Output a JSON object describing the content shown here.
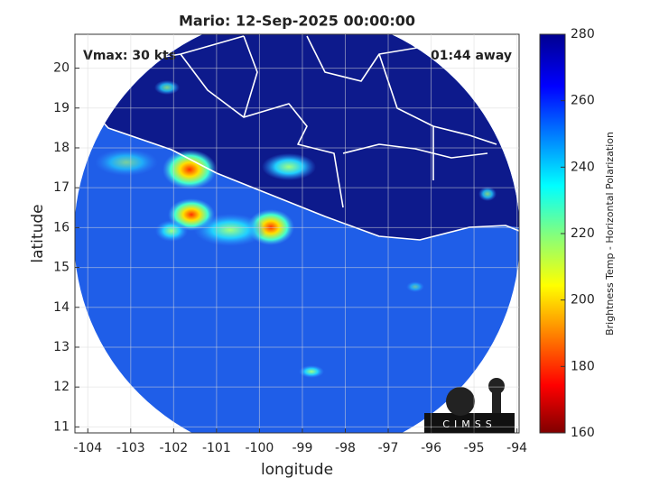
{
  "chart_data": {
    "type": "map",
    "title": "Mario: 12-Sep-2025 00:00:00",
    "annotations": [
      "Vmax: 30 kts",
      "01:44 away"
    ],
    "x_label": "longitude",
    "y_label": "latitude",
    "xlim": [
      -104.3,
      -93.95
    ],
    "xticks": [
      -104,
      -103,
      -102,
      -101,
      -100,
      -99,
      -98,
      -97,
      -96,
      -95,
      -94
    ],
    "ylim": [
      10.85,
      20.85
    ],
    "yticks": [
      11,
      12,
      13,
      14,
      15,
      16,
      17,
      18,
      19,
      20
    ],
    "grid": true,
    "colorbar": {
      "label": "Brightness Temp - Horizontal Polarization",
      "colormap": "jet",
      "clim": [
        160,
        280
      ],
      "ticks": [
        160,
        180,
        200,
        220,
        240,
        260,
        280
      ]
    },
    "logo": "CIMSS"
  }
}
